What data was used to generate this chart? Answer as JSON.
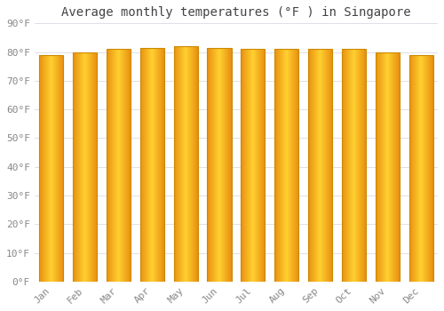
{
  "title": "Average monthly temperatures (°F ) in Singapore",
  "months": [
    "Jan",
    "Feb",
    "Mar",
    "Apr",
    "May",
    "Jun",
    "Jul",
    "Aug",
    "Sep",
    "Oct",
    "Nov",
    "Dec"
  ],
  "values": [
    79,
    80,
    81,
    81.5,
    82,
    81.5,
    81,
    81,
    81,
    81,
    80,
    79
  ],
  "bar_color_center": "#FFD030",
  "bar_color_edge": "#E89010",
  "bar_border_color": "#CC8800",
  "ylim": [
    0,
    90
  ],
  "yticks": [
    0,
    10,
    20,
    30,
    40,
    50,
    60,
    70,
    80,
    90
  ],
  "ytick_labels": [
    "0°F",
    "10°F",
    "20°F",
    "30°F",
    "40°F",
    "50°F",
    "60°F",
    "70°F",
    "80°F",
    "90°F"
  ],
  "background_color": "#FFFFFF",
  "grid_color": "#E0E0E8",
  "title_fontsize": 10,
  "tick_fontsize": 8,
  "tick_color": "#888888",
  "bar_width": 0.72
}
